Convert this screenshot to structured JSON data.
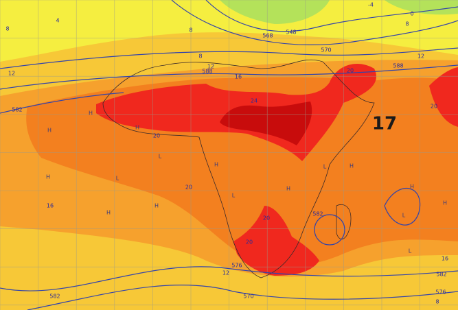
{
  "map": {
    "forecast_label": "17",
    "contour_labels": [
      -4,
      0,
      8,
      548,
      568,
      570,
      12,
      588,
      8,
      12,
      588,
      16,
      20,
      12,
      582,
      24,
      20,
      20,
      20,
      16,
      20,
      582,
      20,
      576,
      12,
      570,
      582,
      582,
      576,
      8,
      16,
      4,
      8,
      8
    ],
    "pressure_centers": [
      "H",
      "H",
      "H",
      "L",
      "H",
      "L",
      "H",
      "H",
      "L",
      "H",
      "L",
      "H",
      "H",
      "L",
      "H",
      "L",
      "H"
    ]
  }
}
